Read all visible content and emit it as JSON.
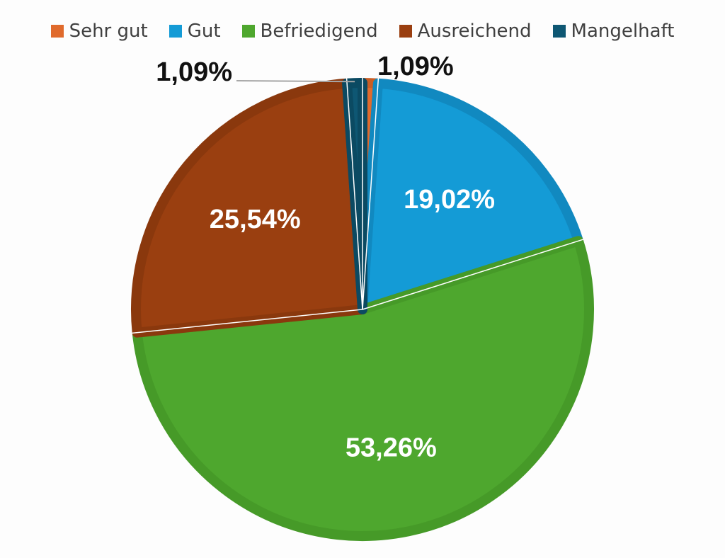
{
  "chart_data": {
    "type": "pie",
    "categories": [
      "Sehr gut",
      "Gut",
      "Befriedigend",
      "Ausreichend",
      "Mangelhaft"
    ],
    "values": [
      1.09,
      19.02,
      53.26,
      25.54,
      1.09
    ],
    "labels": [
      "1,09%",
      "19,02%",
      "53,26%",
      "25,54%",
      "1,09%"
    ],
    "colors": [
      "#e06a2c",
      "#149bd6",
      "#4ea72e",
      "#9a3f10",
      "#0e5773"
    ],
    "border_colors": [
      "#c95d24",
      "#1189c0",
      "#469a28",
      "#8a380d",
      "#0b4a62"
    ],
    "legend_position": "top",
    "start_angle_deg": 0,
    "direction": "clockwise"
  }
}
